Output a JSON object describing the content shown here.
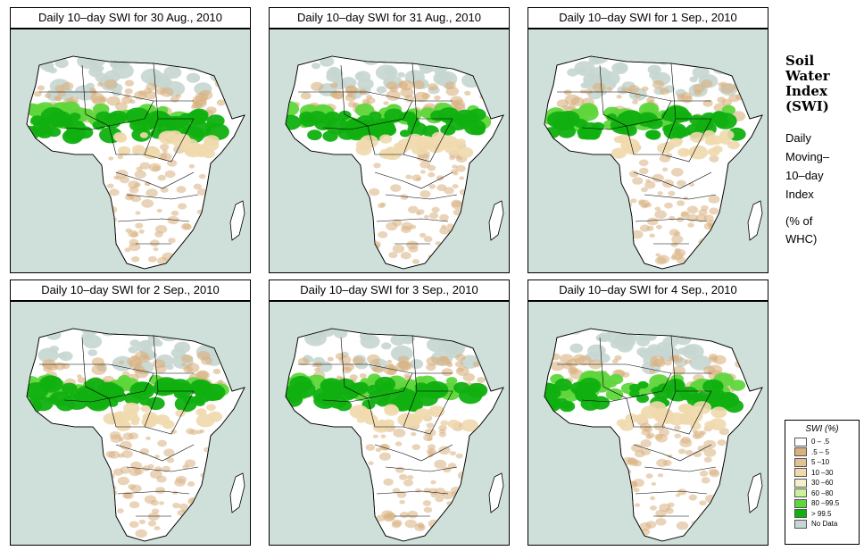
{
  "panels": [
    {
      "title": "Daily 10–day SWI for  30 Aug., 2010",
      "variant": 0
    },
    {
      "title": "Daily 10–day SWI for  31 Aug., 2010",
      "variant": 1
    },
    {
      "title": "Daily 10–day SWI for  1 Sep., 2010",
      "variant": 2
    },
    {
      "title": "Daily 10–day SWI for  2 Sep., 2010",
      "variant": 3
    },
    {
      "title": "Daily 10–day SWI for  3 Sep., 2010",
      "variant": 4
    },
    {
      "title": "Daily 10–day SWI for  4 Sep., 2010",
      "variant": 5
    }
  ],
  "side": {
    "title_lines": [
      "Soil",
      "Water",
      "Index",
      "(SWI)"
    ],
    "subtitle_lines": [
      "Daily",
      "Moving–",
      "10–day",
      "Index"
    ],
    "unit_lines": [
      "(% of",
      " WHC)"
    ]
  },
  "legend": {
    "title": "SWI (%)",
    "items": [
      {
        "label": "0 – .5",
        "color": "#ffffff"
      },
      {
        "label": ".5 – 5",
        "color": "#d9b07f"
      },
      {
        "label": "5 –10",
        "color": "#e2c292"
      },
      {
        "label": "10 –30",
        "color": "#efd9ad"
      },
      {
        "label": "30 –60",
        "color": "#f6efcc"
      },
      {
        "label": "60 –80",
        "color": "#cdf09a"
      },
      {
        "label": "80 –99.5",
        "color": "#5fd63c"
      },
      {
        "label": "> 99.5",
        "color": "#10b010"
      },
      {
        "label": "No Data",
        "color": "#c7d6d2"
      }
    ]
  },
  "colors": {
    "sea": "#cfdfd9",
    "land": "#ffffff",
    "wet_dark": "#10b010",
    "wet_light": "#5fd63c",
    "dry_tan": "#d9b07f",
    "no_data": "#c7d6d2"
  }
}
